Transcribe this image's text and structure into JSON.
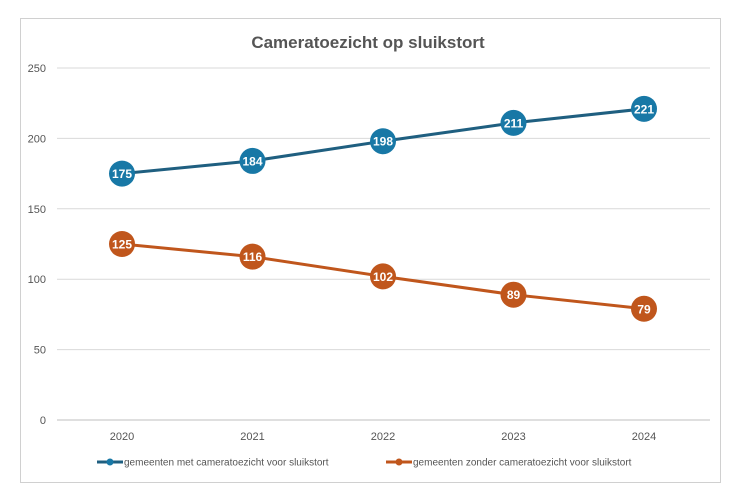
{
  "chart_data": {
    "type": "line",
    "title": "Cameratoezicht op sluikstort",
    "categories": [
      "2020",
      "2021",
      "2022",
      "2023",
      "2024"
    ],
    "ylim": [
      0,
      250
    ],
    "yticks": [
      0,
      50,
      100,
      150,
      200,
      250
    ],
    "grid": true,
    "legend_position": "bottom",
    "series": [
      {
        "name": "gemeenten met cameratoezicht voor sluikstort",
        "values": [
          175,
          184,
          198,
          211,
          221
        ],
        "line_color": "#1f5f80",
        "marker_color": "#1878a6"
      },
      {
        "name": "gemeenten zonder cameratoezicht voor sluikstort",
        "values": [
          125,
          116,
          102,
          89,
          79
        ],
        "line_color": "#c0561c",
        "marker_color": "#c0561c"
      }
    ]
  }
}
